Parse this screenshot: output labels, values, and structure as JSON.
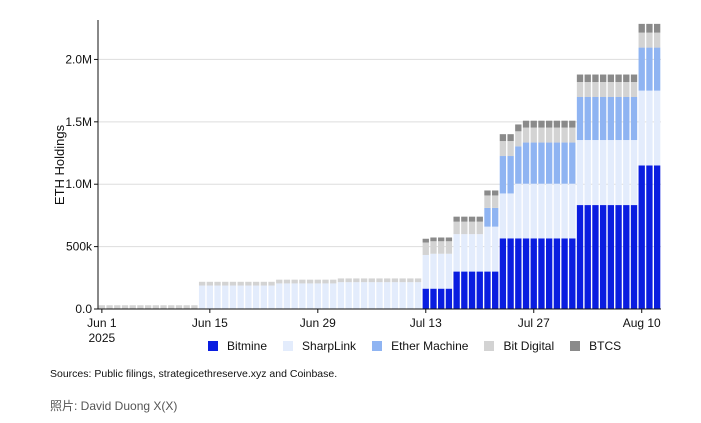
{
  "chart_data": {
    "type": "bar",
    "stacked": true,
    "ylabel": "ETH Holdings",
    "ylim": [
      0,
      2300000
    ],
    "yticks": [
      {
        "value": 0,
        "label": "0.0"
      },
      {
        "value": 500000,
        "label": "500k"
      },
      {
        "value": 1000000,
        "label": "1.0M"
      },
      {
        "value": 1500000,
        "label": "1.5M"
      },
      {
        "value": 2000000,
        "label": "2.0M"
      }
    ],
    "xticks": [
      {
        "index": 0,
        "label": "Jun 1",
        "sub": "2025"
      },
      {
        "index": 14,
        "label": "Jun 15"
      },
      {
        "index": 28,
        "label": "Jun 29"
      },
      {
        "index": 42,
        "label": "Jul 13"
      },
      {
        "index": 56,
        "label": "Jul 27"
      },
      {
        "index": 70,
        "label": "Aug 10"
      }
    ],
    "series": [
      {
        "name": "Bitmine",
        "color": "#0a1de0",
        "values": [
          0,
          0,
          0,
          0,
          0,
          0,
          0,
          0,
          0,
          0,
          0,
          0,
          0,
          0,
          0,
          0,
          0,
          0,
          0,
          0,
          0,
          0,
          0,
          0,
          0,
          0,
          0,
          0,
          0,
          0,
          0,
          0,
          0,
          0,
          0,
          0,
          0,
          0,
          0,
          0,
          0,
          0,
          163000,
          163000,
          163000,
          163000,
          300000,
          300000,
          300000,
          300000,
          300000,
          300000,
          566000,
          566000,
          566000,
          566000,
          566000,
          566000,
          566000,
          566000,
          566000,
          566000,
          833000,
          833000,
          833000,
          833000,
          833000,
          833000,
          833000,
          833000,
          1150000,
          1150000,
          1150000
        ]
      },
      {
        "name": "SharpLink",
        "color": "#e3ecfc",
        "values": [
          0,
          0,
          0,
          0,
          0,
          0,
          0,
          0,
          0,
          0,
          0,
          0,
          0,
          188000,
          188000,
          188000,
          188000,
          188000,
          188000,
          188000,
          188000,
          188000,
          188000,
          205000,
          205000,
          205000,
          205000,
          205000,
          205000,
          205000,
          205000,
          215000,
          215000,
          215000,
          215000,
          215000,
          215000,
          215000,
          215000,
          215000,
          215000,
          215000,
          270000,
          280000,
          280000,
          280000,
          300000,
          300000,
          300000,
          300000,
          360000,
          360000,
          360000,
          360000,
          438000,
          438000,
          438000,
          438000,
          438000,
          438000,
          438000,
          438000,
          521000,
          521000,
          521000,
          521000,
          521000,
          521000,
          521000,
          521000,
          600000,
          600000,
          600000
        ]
      },
      {
        "name": "Ether Machine",
        "color": "#8fb4f2",
        "values": [
          0,
          0,
          0,
          0,
          0,
          0,
          0,
          0,
          0,
          0,
          0,
          0,
          0,
          0,
          0,
          0,
          0,
          0,
          0,
          0,
          0,
          0,
          0,
          0,
          0,
          0,
          0,
          0,
          0,
          0,
          0,
          0,
          0,
          0,
          0,
          0,
          0,
          0,
          0,
          0,
          0,
          0,
          0,
          0,
          0,
          0,
          0,
          0,
          0,
          0,
          150000,
          150000,
          300000,
          300000,
          300000,
          330000,
          330000,
          330000,
          330000,
          330000,
          330000,
          330000,
          345000,
          345000,
          345000,
          345000,
          345000,
          345000,
          345000,
          345000,
          345000,
          345000,
          345000
        ]
      },
      {
        "name": "Bit Digital",
        "color": "#d3d3d3",
        "values": [
          30000,
          30000,
          30000,
          30000,
          30000,
          30000,
          30000,
          30000,
          30000,
          30000,
          30000,
          30000,
          30000,
          30000,
          30000,
          30000,
          30000,
          30000,
          30000,
          30000,
          30000,
          30000,
          30000,
          30000,
          30000,
          30000,
          30000,
          30000,
          30000,
          30000,
          30000,
          30000,
          30000,
          30000,
          30000,
          30000,
          30000,
          30000,
          30000,
          30000,
          30000,
          30000,
          100000,
          100000,
          100000,
          100000,
          100000,
          100000,
          100000,
          100000,
          100000,
          100000,
          120000,
          120000,
          120000,
          120000,
          120000,
          120000,
          120000,
          120000,
          120000,
          120000,
          120000,
          120000,
          120000,
          120000,
          120000,
          120000,
          120000,
          120000,
          120000,
          120000,
          120000
        ]
      },
      {
        "name": "BTCS",
        "color": "#8a8a8a",
        "values": [
          0,
          0,
          0,
          0,
          0,
          0,
          0,
          0,
          0,
          0,
          0,
          0,
          0,
          0,
          0,
          0,
          0,
          0,
          0,
          0,
          0,
          0,
          0,
          0,
          0,
          0,
          0,
          0,
          0,
          0,
          0,
          0,
          0,
          0,
          0,
          0,
          0,
          0,
          0,
          0,
          0,
          0,
          30000,
          30000,
          30000,
          30000,
          40000,
          40000,
          40000,
          40000,
          40000,
          40000,
          55000,
          55000,
          55000,
          55000,
          55000,
          55000,
          55000,
          55000,
          55000,
          55000,
          60000,
          60000,
          60000,
          60000,
          60000,
          60000,
          60000,
          60000,
          70000,
          70000,
          70000
        ]
      }
    ]
  },
  "sources": "Sources: Public filings, strategicethreserve.xyz and Coinbase.",
  "credit": "照片: David Duong X(X)"
}
